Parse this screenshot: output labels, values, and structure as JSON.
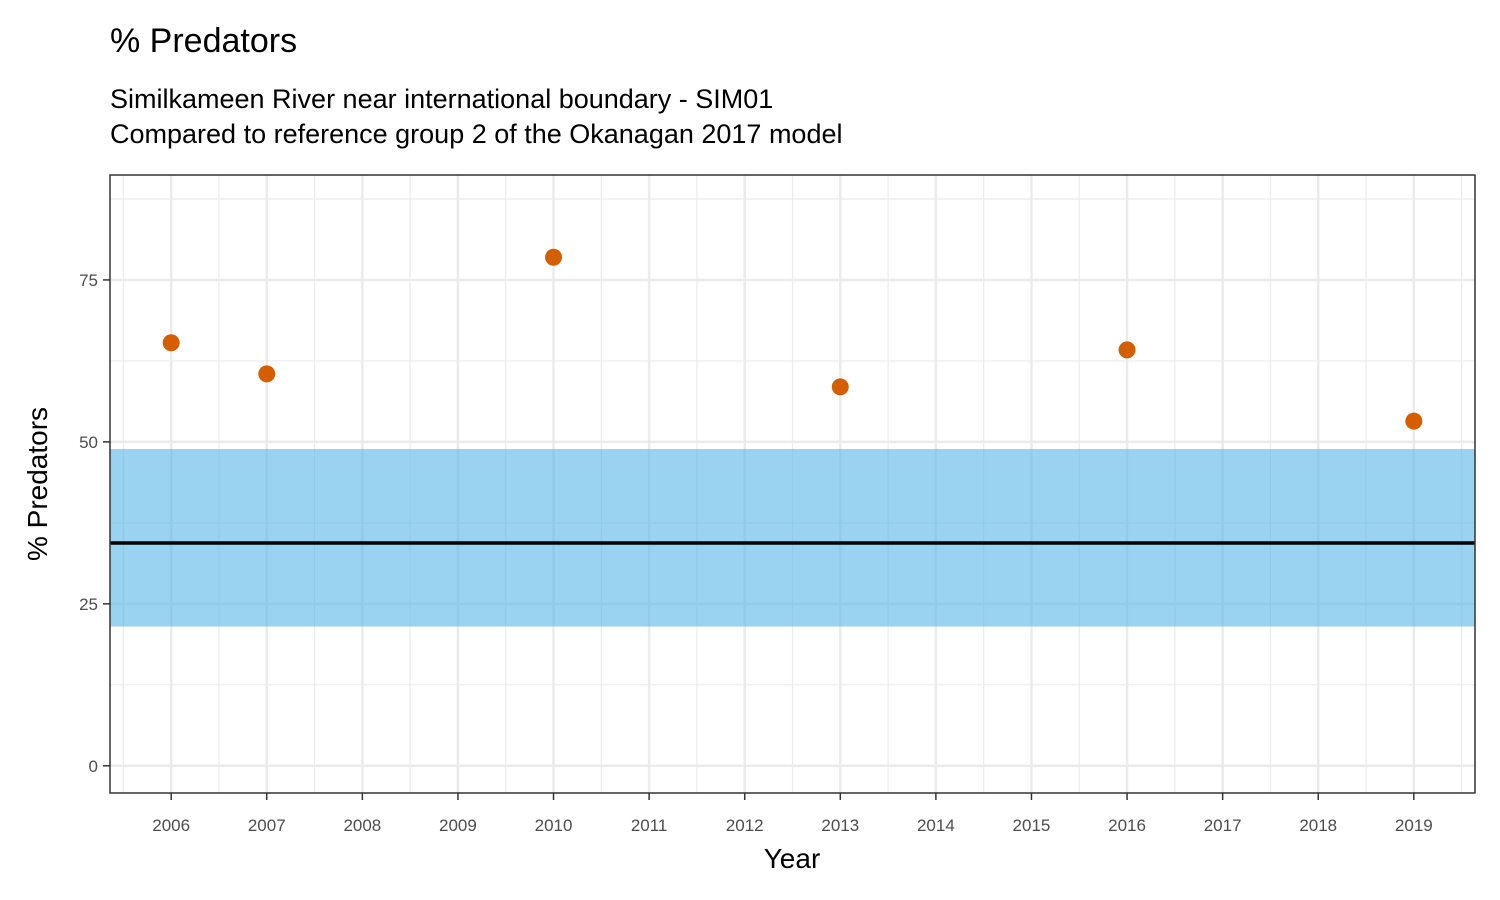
{
  "chart_data": {
    "type": "scatter",
    "title": "% Predators",
    "subtitle_lines": [
      "Similkameen River near international boundary - SIM01",
      "Compared to reference group 2 of the Okanagan 2017 model"
    ],
    "xlabel": "Year",
    "ylabel": "% Predators",
    "xlim": [
      2005.36,
      2019.64
    ],
    "ylim": [
      -4.2,
      91.2
    ],
    "x_ticks": [
      2006,
      2007,
      2008,
      2009,
      2010,
      2011,
      2012,
      2013,
      2014,
      2015,
      2016,
      2017,
      2018,
      2019
    ],
    "y_ticks": [
      0,
      25,
      50,
      75
    ],
    "grid": true,
    "points": [
      {
        "x": 2006,
        "y": 65.3
      },
      {
        "x": 2007,
        "y": 60.5
      },
      {
        "x": 2010,
        "y": 78.5
      },
      {
        "x": 2013,
        "y": 58.5
      },
      {
        "x": 2016,
        "y": 64.2
      },
      {
        "x": 2019,
        "y": 53.2
      }
    ],
    "reference_band": {
      "lower": 21.5,
      "upper": 48.9
    },
    "reference_line": 34.4,
    "colors": {
      "point": "#D55E00",
      "band": "#56B4E9",
      "line": "#000000",
      "grid": "#EBEBEB"
    }
  }
}
